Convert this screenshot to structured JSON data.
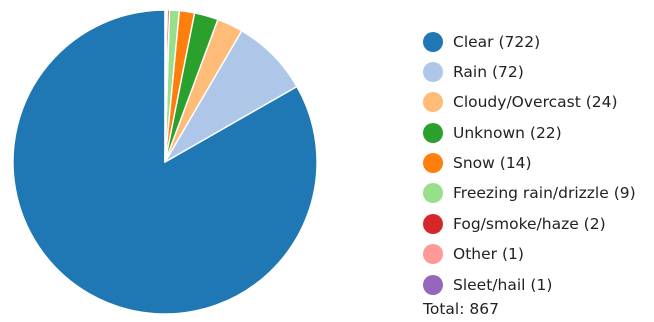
{
  "chart_data": {
    "type": "pie",
    "title": "",
    "categories": [
      "Clear",
      "Rain",
      "Cloudy/Overcast",
      "Unknown",
      "Snow",
      "Freezing rain/drizzle",
      "Fog/smoke/haze",
      "Other",
      "Sleet/hail"
    ],
    "values": [
      722,
      72,
      24,
      22,
      14,
      9,
      2,
      1,
      1
    ],
    "colors": [
      "#1f77b4",
      "#aec7e8",
      "#ffbb78",
      "#2ca02c",
      "#ff7f0e",
      "#98df8a",
      "#d62728",
      "#ff9896",
      "#9467bd"
    ],
    "legend_position": "right",
    "total_label": "Total:",
    "total_value": "867"
  }
}
